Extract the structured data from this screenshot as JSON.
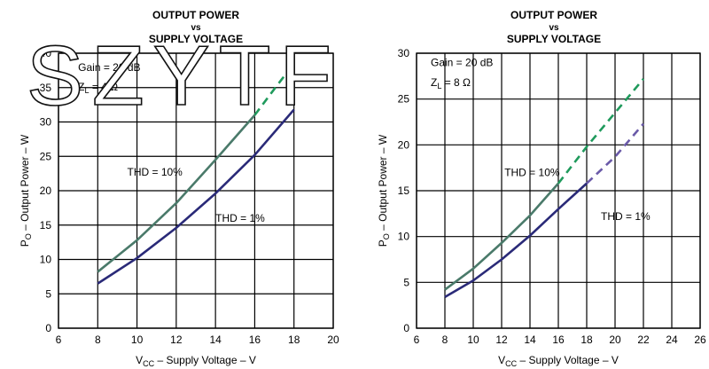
{
  "watermark": "SZYTF",
  "colors": {
    "thd10": "#4a7a6a",
    "thd10_dash": "#1f9a5c",
    "thd1": "#2a2a78",
    "thd1_dash": "#6a5aa8"
  },
  "chart_data": [
    {
      "type": "line",
      "title": "OUTPUT POWER",
      "title_vs": "vs",
      "subtitle": "SUPPLY VOLTAGE",
      "xlabel_main": "V",
      "xlabel_sub": "CC",
      "xlabel_rest": " – Supply Voltage – V",
      "ylabel_main": "P",
      "ylabel_sub": "O",
      "ylabel_rest": " – Output Power – W",
      "xlim": [
        6,
        20
      ],
      "ylim": [
        0,
        40
      ],
      "xticks": [
        6,
        8,
        10,
        12,
        14,
        16,
        18,
        20
      ],
      "yticks": [
        0,
        5,
        10,
        15,
        20,
        25,
        30,
        35,
        40
      ],
      "annotations": {
        "gain": "Gain = 20 dB",
        "z_main": "Z",
        "z_sub": "L",
        "z_rest": " = 4 Ω"
      },
      "series": [
        {
          "name": "THD = 10%",
          "color_key": "thd10",
          "x": [
            8,
            10,
            12,
            14,
            16
          ],
          "y": [
            8.2,
            12.8,
            18.2,
            24.5,
            31.0
          ],
          "dashed_x": [
            16,
            17,
            18
          ],
          "dashed_y": [
            31.0,
            34.8,
            38.5
          ]
        },
        {
          "name": "THD = 1%",
          "color_key": "thd1",
          "x": [
            8,
            10,
            12,
            14,
            16,
            18
          ],
          "y": [
            6.5,
            10.2,
            14.6,
            19.6,
            25.2,
            31.8
          ],
          "dashed_x": [],
          "dashed_y": []
        }
      ]
    },
    {
      "type": "line",
      "title": "OUTPUT POWER",
      "title_vs": "vs",
      "subtitle": "SUPPLY VOLTAGE",
      "xlabel_main": "V",
      "xlabel_sub": "CC",
      "xlabel_rest": " – Supply Voltage – V",
      "ylabel_main": "P",
      "ylabel_sub": "O",
      "ylabel_rest": " – Output Power – W",
      "xlim": [
        6,
        26
      ],
      "ylim": [
        0,
        30
      ],
      "xticks": [
        6,
        8,
        10,
        12,
        14,
        16,
        18,
        20,
        22,
        24,
        26
      ],
      "yticks": [
        0,
        5,
        10,
        15,
        20,
        25,
        30
      ],
      "annotations": {
        "gain": "Gain = 20 dB",
        "z_main": "Z",
        "z_sub": "L",
        "z_rest": " = 8 Ω"
      },
      "series": [
        {
          "name": "THD = 10%",
          "color_key": "thd10",
          "x": [
            8,
            10,
            12,
            14,
            16
          ],
          "y": [
            4.2,
            6.5,
            9.3,
            12.3,
            15.8
          ],
          "dashed_x": [
            16,
            18,
            20,
            22
          ],
          "dashed_y": [
            15.8,
            19.8,
            23.5,
            27.2
          ]
        },
        {
          "name": "THD = 1%",
          "color_key": "thd1",
          "x": [
            8,
            10,
            12,
            14,
            16,
            18
          ],
          "y": [
            3.4,
            5.2,
            7.5,
            10.1,
            13.0,
            15.8
          ],
          "dashed_x": [
            18,
            20,
            22
          ],
          "dashed_y": [
            15.8,
            18.7,
            22.3
          ]
        }
      ]
    }
  ]
}
